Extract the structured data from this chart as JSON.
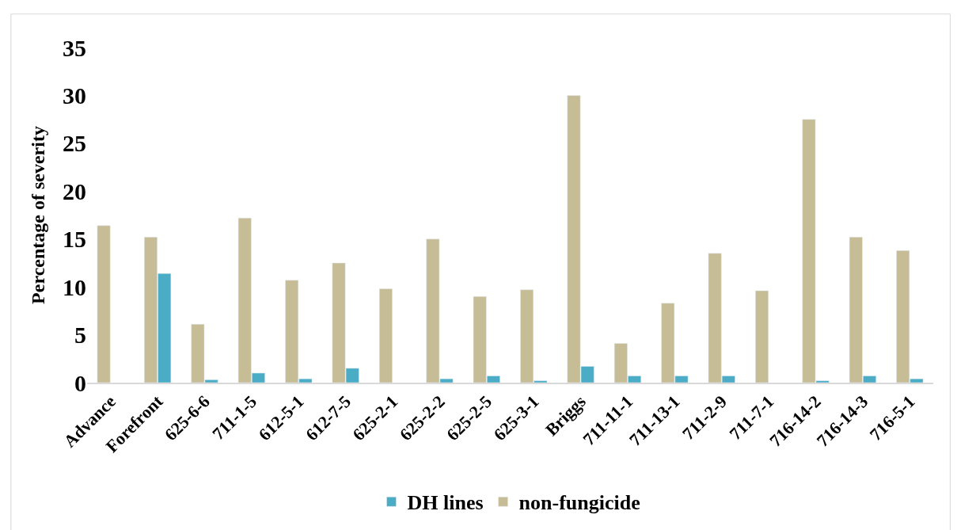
{
  "chart_data": {
    "type": "bar",
    "ylabel": "Percentage of severity",
    "categories": [
      "Advance",
      "Forefront",
      "625-6-6",
      "711-1-5",
      "612-5-1",
      "612-7-5",
      "625-2-1",
      "625-2-2",
      "625-2-5",
      "625-3-1",
      "Briggs",
      "711-11-1",
      "711-13-1",
      "711-2-9",
      "711-7-1",
      "716-14-2",
      "716-14-3",
      "716-5-1"
    ],
    "series": [
      {
        "name": "non-fungicide",
        "color": "#c6bd96",
        "values": [
          16.4,
          15.2,
          6.1,
          17.2,
          10.7,
          12.5,
          9.8,
          15.0,
          9.0,
          9.7,
          30.0,
          4.1,
          8.3,
          13.5,
          9.6,
          27.5,
          15.2,
          13.8
        ]
      },
      {
        "name": "DH lines",
        "color": "#4bacc6",
        "values": [
          null,
          11.4,
          0.3,
          1.0,
          0.4,
          1.5,
          null,
          0.4,
          0.7,
          0.2,
          1.7,
          0.7,
          0.7,
          0.7,
          null,
          0.2,
          0.7,
          0.4
        ]
      }
    ],
    "ylim": [
      0,
      35
    ],
    "yticks": [
      0,
      5,
      10,
      15,
      20,
      25,
      30,
      35
    ],
    "legend": "bottom"
  }
}
